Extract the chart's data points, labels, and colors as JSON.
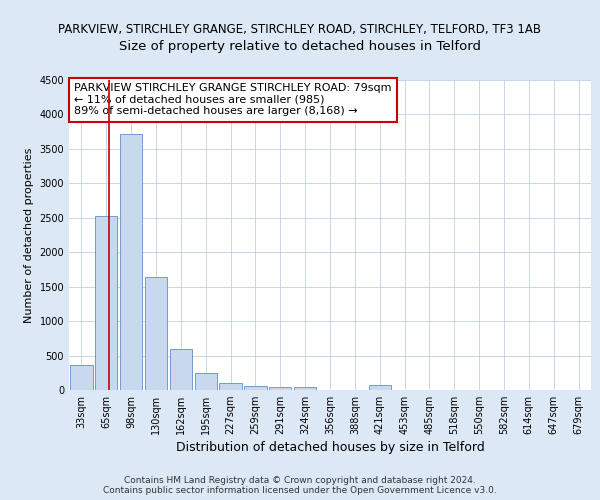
{
  "title1": "PARKVIEW, STIRCHLEY GRANGE, STIRCHLEY ROAD, STIRCHLEY, TELFORD, TF3 1AB",
  "title2": "Size of property relative to detached houses in Telford",
  "xlabel": "Distribution of detached houses by size in Telford",
  "ylabel": "Number of detached properties",
  "categories": [
    "33sqm",
    "65sqm",
    "98sqm",
    "130sqm",
    "162sqm",
    "195sqm",
    "227sqm",
    "259sqm",
    "291sqm",
    "324sqm",
    "356sqm",
    "388sqm",
    "421sqm",
    "453sqm",
    "485sqm",
    "518sqm",
    "550sqm",
    "582sqm",
    "614sqm",
    "647sqm",
    "679sqm"
  ],
  "values": [
    370,
    2520,
    3720,
    1640,
    600,
    240,
    105,
    65,
    50,
    40,
    0,
    0,
    70,
    0,
    0,
    0,
    0,
    0,
    0,
    0,
    0
  ],
  "bar_color": "#c8d8ee",
  "bar_edge_color": "#6090c8",
  "ylim": [
    0,
    4500
  ],
  "yticks": [
    0,
    500,
    1000,
    1500,
    2000,
    2500,
    3000,
    3500,
    4000,
    4500
  ],
  "red_line_x": 1.12,
  "annotation_text": "PARKVIEW STIRCHLEY GRANGE STIRCHLEY ROAD: 79sqm\n← 11% of detached houses are smaller (985)\n89% of semi-detached houses are larger (8,168) →",
  "annotation_box_color": "#ffffff",
  "annotation_box_edge": "#cc0000",
  "footer": "Contains HM Land Registry data © Crown copyright and database right 2024.\nContains public sector information licensed under the Open Government Licence v3.0.",
  "bg_color": "#dce8f5",
  "plot_bg": "#ffffff",
  "grid_color": "#c0d0e4",
  "title1_fontsize": 8.5,
  "title2_fontsize": 9.5,
  "xlabel_fontsize": 9,
  "ylabel_fontsize": 8,
  "tick_fontsize": 7,
  "footer_fontsize": 6.5,
  "annot_fontsize": 8
}
